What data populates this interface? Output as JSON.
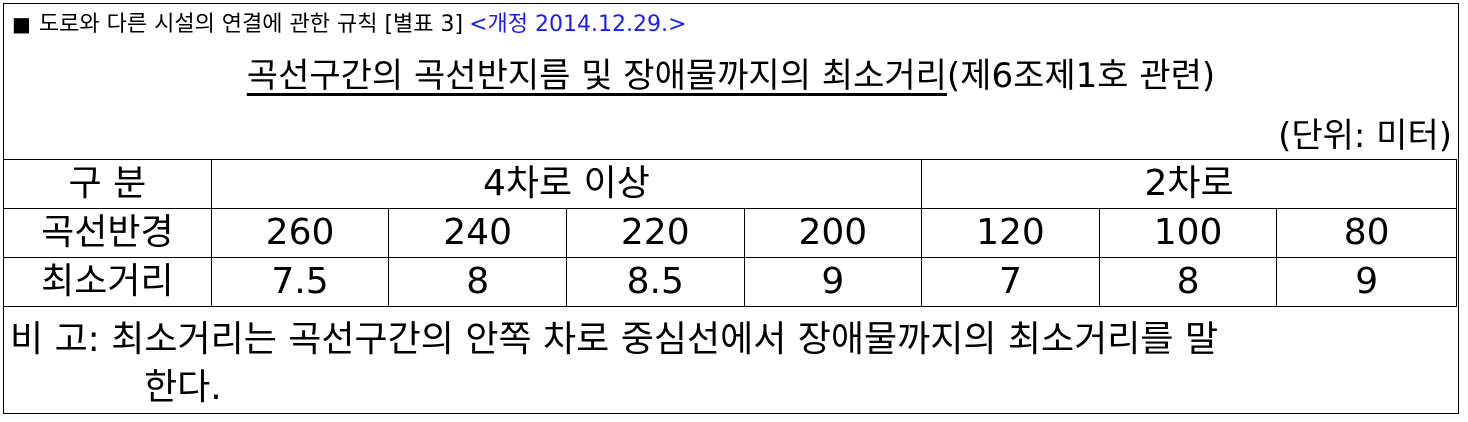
{
  "header": {
    "prefix": "■",
    "text": "도로와 다른 시설의 연결에 관한 규칙 [별표 3]",
    "amendment": "<개정 2014.12.29.>"
  },
  "title": {
    "main": "곡선구간의 곡선반지름 및 장애물까지의 최소거리",
    "suffix": "(제6조제1호 관련)"
  },
  "unit": "(단위: 미터)",
  "table": {
    "header": {
      "label": "구 분",
      "group1": "4차로 이상",
      "group2": "2차로"
    },
    "rows": [
      {
        "label": "곡선반경",
        "values": [
          "260",
          "240",
          "220",
          "200",
          "120",
          "100",
          "80"
        ]
      },
      {
        "label": "최소거리",
        "values": [
          "7.5",
          "8",
          "8.5",
          "9",
          "7",
          "8",
          "9"
        ]
      }
    ]
  },
  "note": {
    "line1": "비 고: 최소거리는 곡선구간의 안쪽 차로 중심선에서 장애물까지의 최소거리를 말",
    "line2": "한다."
  }
}
